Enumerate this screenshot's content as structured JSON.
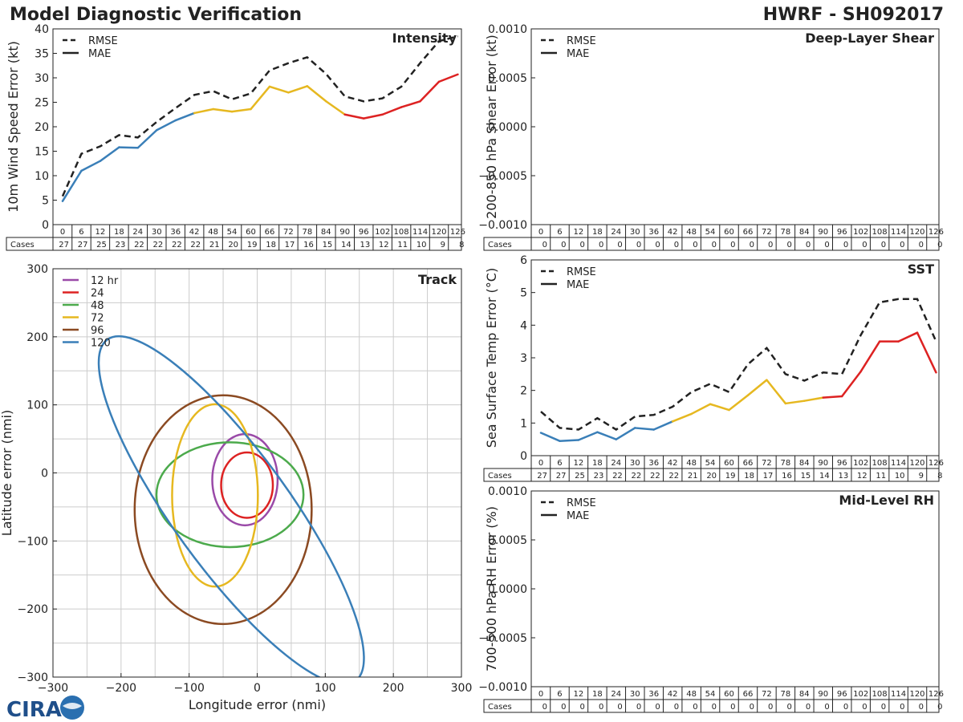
{
  "header": {
    "title": "Model Diagnostic Verification",
    "model_id": "HWRF - SH092017"
  },
  "logo": {
    "text": "CIRA"
  },
  "colors": {
    "blue": "#3a7fb8",
    "yellow": "#e6b820",
    "red": "#dd2222",
    "purple": "#9a4aa8",
    "green": "#4caa4c",
    "brown": "#8b4a22",
    "rmse": "#222222"
  },
  "table": {
    "hours": [
      "0",
      "6",
      "12",
      "18",
      "24",
      "30",
      "36",
      "42",
      "48",
      "54",
      "60",
      "66",
      "72",
      "78",
      "84",
      "90",
      "96",
      "102",
      "108",
      "114",
      "120",
      "126"
    ],
    "cases_label": "Cases",
    "cases_full": [
      "27",
      "27",
      "25",
      "23",
      "22",
      "22",
      "22",
      "22",
      "21",
      "20",
      "19",
      "18",
      "17",
      "16",
      "15",
      "14",
      "13",
      "12",
      "11",
      "10",
      "9",
      "8"
    ],
    "cases_zero": [
      "0",
      "0",
      "0",
      "0",
      "0",
      "0",
      "0",
      "0",
      "0",
      "0",
      "0",
      "0",
      "0",
      "0",
      "0",
      "0",
      "0",
      "0",
      "0",
      "0",
      "0",
      "0"
    ]
  },
  "legend": {
    "rmse": "RMSE",
    "mae": "MAE"
  },
  "chart_data": [
    {
      "id": "intensity",
      "type": "line",
      "title": "Intensity",
      "ylabel": "10m Wind Speed Error (kt)",
      "ylim": [
        0,
        40
      ],
      "yticks": [
        "0",
        "5",
        "10",
        "15",
        "20",
        "25",
        "30",
        "35",
        "40"
      ],
      "x": [
        0,
        6,
        12,
        18,
        24,
        30,
        36,
        42,
        48,
        54,
        60,
        66,
        72,
        78,
        84,
        90,
        96,
        102,
        108,
        114,
        120,
        126
      ],
      "series": [
        {
          "name": "RMSE",
          "values": [
            5.8,
            14.5,
            16,
            18.3,
            17.8,
            21,
            23.8,
            26.5,
            27.3,
            25.6,
            26.8,
            31.5,
            33,
            34.2,
            30.8,
            26.2,
            25.2,
            25.8,
            28.2,
            33,
            37.5,
            38.5
          ]
        },
        {
          "name": "MAE",
          "values": [
            4.8,
            11,
            13,
            15.8,
            15.7,
            19.3,
            21.3,
            22.8,
            23.6,
            23.1,
            23.6,
            28.2,
            27,
            28.3,
            25.2,
            22.5,
            21.7,
            22.5,
            24,
            25.2,
            29.2,
            30.7
          ]
        }
      ]
    },
    {
      "id": "shear",
      "type": "line",
      "title": "Deep-Layer Shear",
      "ylabel": "200-850 hPa Shear Error (kt)",
      "ylim": [
        -0.001,
        0.001
      ],
      "yticks": [
        "−0.0010",
        "−0.0005",
        "0.0000",
        "0.0005",
        "0.0010"
      ],
      "series": []
    },
    {
      "id": "sst",
      "type": "line",
      "title": "SST",
      "ylabel": "Sea Surface Temp Error (°C)",
      "ylim": [
        0,
        6
      ],
      "yticks": [
        "0",
        "1",
        "2",
        "3",
        "4",
        "5",
        "6"
      ],
      "x": [
        0,
        6,
        12,
        18,
        24,
        30,
        36,
        42,
        48,
        54,
        60,
        66,
        72,
        78,
        84,
        90,
        96,
        102,
        108,
        114,
        120,
        126
      ],
      "series": [
        {
          "name": "RMSE",
          "values": [
            1.35,
            0.85,
            0.8,
            1.15,
            0.8,
            1.2,
            1.25,
            1.5,
            1.95,
            2.2,
            1.95,
            2.8,
            3.3,
            2.5,
            2.3,
            2.55,
            2.5,
            3.7,
            4.7,
            4.8,
            4.8,
            3.5
          ]
        },
        {
          "name": "MAE",
          "values": [
            0.7,
            0.45,
            0.48,
            0.72,
            0.5,
            0.85,
            0.8,
            1.05,
            1.28,
            1.58,
            1.4,
            1.85,
            2.32,
            1.6,
            1.68,
            1.78,
            1.82,
            2.58,
            3.5,
            3.5,
            3.77,
            2.55
          ]
        }
      ]
    },
    {
      "id": "rh",
      "type": "line",
      "title": "Mid-Level RH",
      "ylabel": "700-500 hPa RH Error (%)",
      "ylim": [
        -0.001,
        0.001
      ],
      "yticks": [
        "−0.0010",
        "−0.0005",
        "0.0000",
        "0.0005",
        "0.0010"
      ],
      "series": []
    },
    {
      "id": "track",
      "type": "ellipse",
      "title": "Track",
      "xlabel": "Longitude error (nmi)",
      "ylabel": "Latitude error (nmi)",
      "xlim": [
        -300,
        300
      ],
      "ylim": [
        -300,
        300
      ],
      "xticks": [
        "−300",
        "−200",
        "−100",
        "0",
        "100",
        "200",
        "300"
      ],
      "yticks": [
        "−300",
        "−200",
        "−100",
        "0",
        "100",
        "200",
        "300"
      ],
      "ellipses": [
        {
          "name": "12 hr",
          "color": "purple",
          "cx": -18,
          "cy": -10,
          "rx": 48,
          "ry": 67
        },
        {
          "name": "24",
          "color": "red",
          "cx": -15,
          "cy": -18,
          "rx": 38,
          "ry": 48
        },
        {
          "name": "48",
          "color": "green",
          "cx": -40,
          "cy": -32,
          "rx": 108,
          "ry": 77
        },
        {
          "name": "72",
          "color": "yellow",
          "cx": -62,
          "cy": -33,
          "rx": 63,
          "ry": 134
        },
        {
          "name": "96",
          "color": "brown",
          "cx": -50,
          "cy": -54,
          "rx": 130,
          "ry": 168
        },
        {
          "name": "120",
          "color": "blue",
          "cx": -38,
          "cy": -55,
          "rx": 310,
          "ry": 85,
          "rotation": 54
        }
      ]
    }
  ]
}
